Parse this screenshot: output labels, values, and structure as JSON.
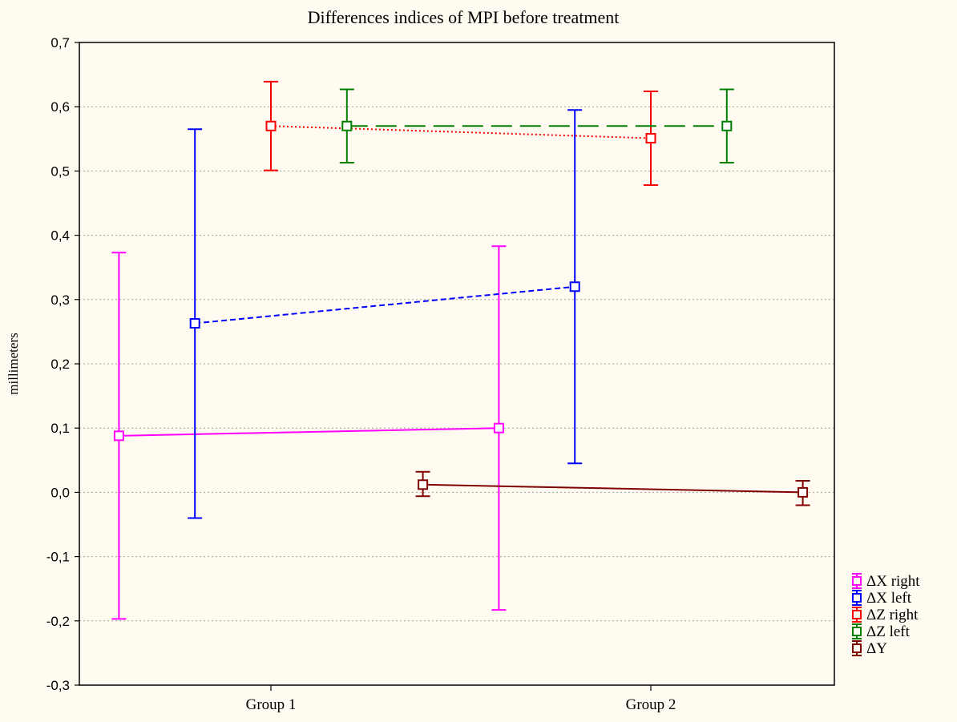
{
  "chart_data": {
    "type": "line",
    "title": "Differences indices of MPI before treatment",
    "xlabel": "",
    "ylabel": "millimeters",
    "categories": [
      "Group  1",
      "Group  2"
    ],
    "ylim": [
      -0.3,
      0.7
    ],
    "yticks": [
      -0.3,
      -0.2,
      -0.1,
      0.0,
      0.1,
      0.2,
      0.3,
      0.4,
      0.5,
      0.6,
      0.7
    ],
    "ytick_labels": [
      "-0,3",
      "-0,2",
      "-0,1",
      "0,0",
      "0,1",
      "0,2",
      "0,3",
      "0,4",
      "0,5",
      "0,6",
      "0,7"
    ],
    "grid": true,
    "legend_position": "bottom-right",
    "series": [
      {
        "name": "ΔX  right",
        "color": "#ff00ff",
        "line_style": "solid",
        "points": [
          {
            "x": -0.4,
            "y": 0.088,
            "low": -0.197,
            "high": 0.373
          },
          {
            "x": 0.6,
            "y": 0.1,
            "low": -0.183,
            "high": 0.383
          }
        ]
      },
      {
        "name": "ΔX  left",
        "color": "#0000ff",
        "line_style": "dashed",
        "points": [
          {
            "x": -0.2,
            "y": 0.263,
            "low": -0.04,
            "high": 0.565
          },
          {
            "x": 0.8,
            "y": 0.32,
            "low": 0.045,
            "high": 0.595
          }
        ]
      },
      {
        "name": "ΔZ  right",
        "color": "#ff0000",
        "line_style": "dotted",
        "points": [
          {
            "x": 0.0,
            "y": 0.57,
            "low": 0.501,
            "high": 0.639
          },
          {
            "x": 1.0,
            "y": 0.551,
            "low": 0.478,
            "high": 0.624
          }
        ]
      },
      {
        "name": "ΔZ  left",
        "color": "#008000",
        "line_style": "longdash",
        "points": [
          {
            "x": 0.2,
            "y": 0.57,
            "low": 0.513,
            "high": 0.627
          },
          {
            "x": 1.2,
            "y": 0.57,
            "low": 0.513,
            "high": 0.627
          }
        ]
      },
      {
        "name": "ΔY",
        "color": "#800000",
        "line_style": "solid",
        "points": [
          {
            "x": 0.4,
            "y": 0.012,
            "low": -0.006,
            "high": 0.032
          },
          {
            "x": 1.4,
            "y": 0.0,
            "low": -0.02,
            "high": 0.018
          }
        ]
      }
    ]
  }
}
